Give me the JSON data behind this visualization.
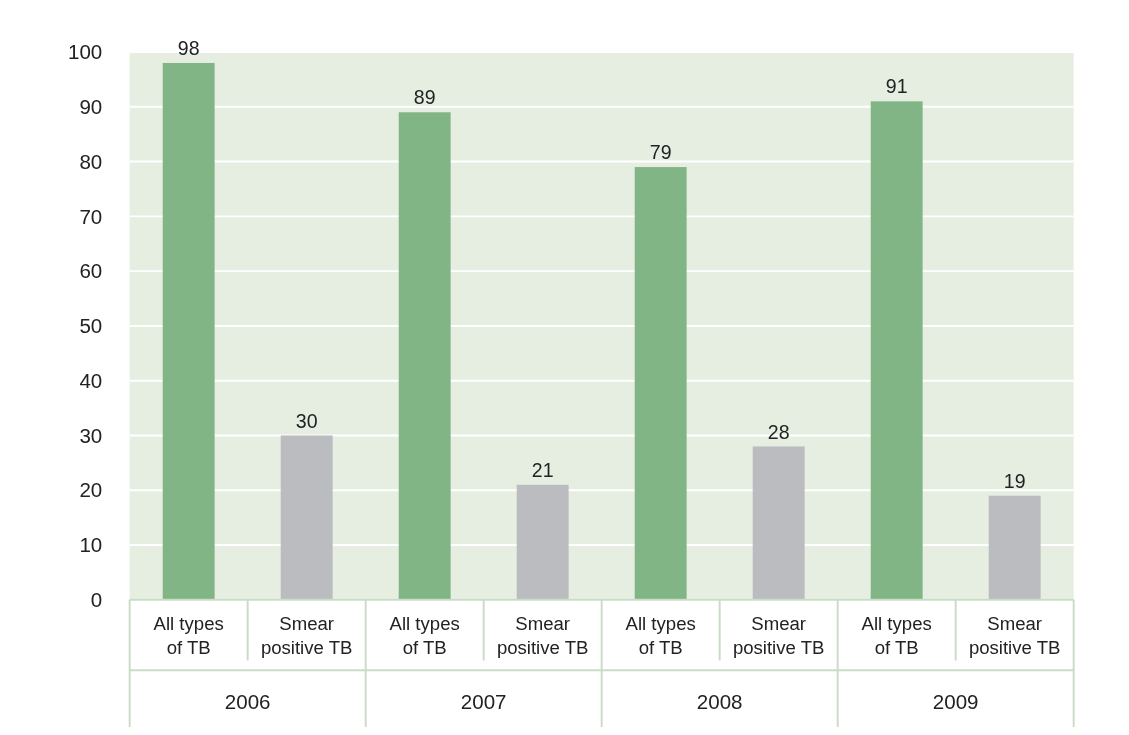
{
  "chart_data": {
    "type": "bar",
    "categories": [
      "2006",
      "2007",
      "2008",
      "2009"
    ],
    "series": [
      {
        "name": "All types of TB",
        "color": "#82b585",
        "values": [
          98,
          89,
          79,
          91
        ]
      },
      {
        "name": "Smear positive TB",
        "color": "#bbbcc0",
        "values": [
          30,
          21,
          28,
          19
        ]
      }
    ],
    "ylim": [
      0,
      100
    ],
    "yticks": [
      0,
      10,
      20,
      30,
      40,
      50,
      60,
      70,
      80,
      90,
      100
    ],
    "grid": "y",
    "data_labels": true
  }
}
